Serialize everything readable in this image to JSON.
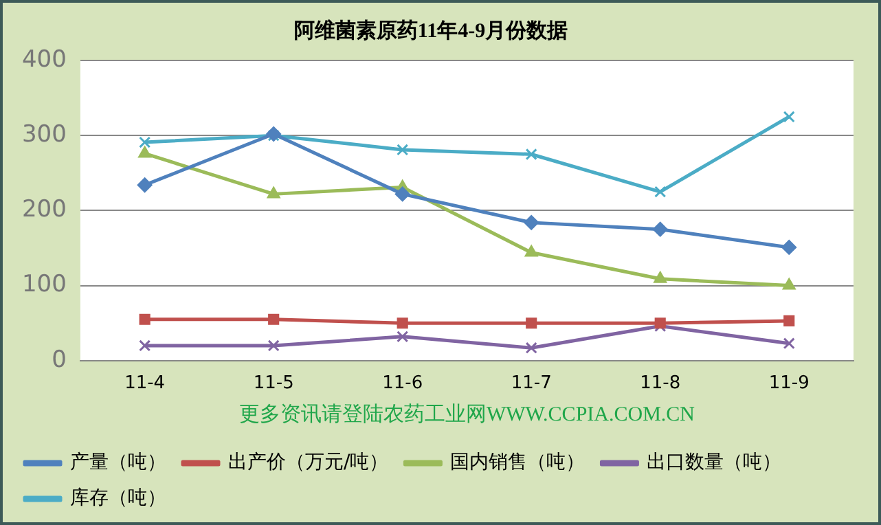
{
  "chart_data": {
    "type": "line",
    "title": "阿维菌素原药11年4-9月份数据",
    "categories": [
      "11-4",
      "11-5",
      "11-6",
      "11-7",
      "11-8",
      "11-9"
    ],
    "ylim": [
      0,
      400
    ],
    "yticks": [
      0,
      100,
      200,
      300,
      400
    ],
    "grid": "y",
    "legend": "bottom",
    "annotations": [
      "更多资讯请登陆农药工业网WWW.CCPIA.COM.CN"
    ],
    "series": [
      {
        "name": "产量（吨）",
        "color": "#4f81bd",
        "marker": "diamond",
        "values": [
          234,
          302,
          222,
          184,
          175,
          151
        ]
      },
      {
        "name": "出产价（万元/吨）",
        "color": "#c0504d",
        "marker": "square",
        "values": [
          55,
          55,
          50,
          50,
          50,
          53
        ]
      },
      {
        "name": "国内销售（吨）",
        "color": "#9bbb59",
        "marker": "triangle",
        "values": [
          276,
          222,
          231,
          144,
          109,
          100
        ]
      },
      {
        "name": "出口数量（吨）",
        "color": "#8064a2",
        "marker": "cross",
        "values": [
          20,
          20,
          32,
          17,
          46,
          23
        ]
      },
      {
        "name": "库存（吨）",
        "color": "#4bacc6",
        "marker": "cross",
        "values": [
          291,
          300,
          281,
          275,
          225,
          325
        ]
      }
    ]
  }
}
